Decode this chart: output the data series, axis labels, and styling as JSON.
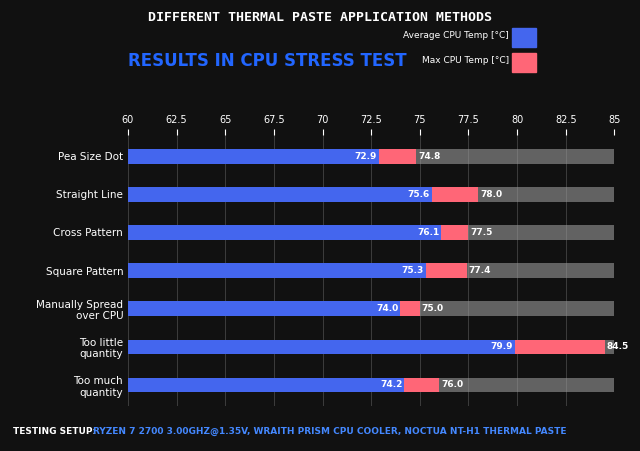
{
  "title_top": "DIFFERENT THERMAL PASTE APPLICATION METHODS",
  "title_sub": "RESULTS IN CPU STRESS TEST",
  "categories": [
    "Pea Size Dot",
    "Straight Line",
    "Cross Pattern",
    "Square Pattern",
    "Manually Spread\nover CPU",
    "Too little\nquantity",
    "Too much\nquantity"
  ],
  "avg_temps": [
    72.9,
    75.6,
    76.1,
    75.3,
    74.0,
    79.9,
    74.2
  ],
  "max_temps": [
    74.8,
    78.0,
    77.5,
    77.4,
    75.0,
    84.5,
    76.0
  ],
  "xmin": 60,
  "xmax": 85,
  "xticks": [
    60,
    62.5,
    65,
    67.5,
    70,
    72.5,
    75,
    77.5,
    80,
    82.5,
    85
  ],
  "avg_color": "#4466ee",
  "max_color": "#ff6677",
  "bg_bar_color": "#999999",
  "background_color": "#111111",
  "text_color": "#ffffff",
  "footer_label": "TESTING SETUP:",
  "footer_detail": "RYZEN 7 2700 3.00GHZ@1.35V, WRAITH PRISM CPU COOLER, NOCTUA NT-H1 THERMAL PASTE",
  "legend_avg": "Average CPU Temp [°C]",
  "legend_max": "Max CPU Temp [°C]"
}
